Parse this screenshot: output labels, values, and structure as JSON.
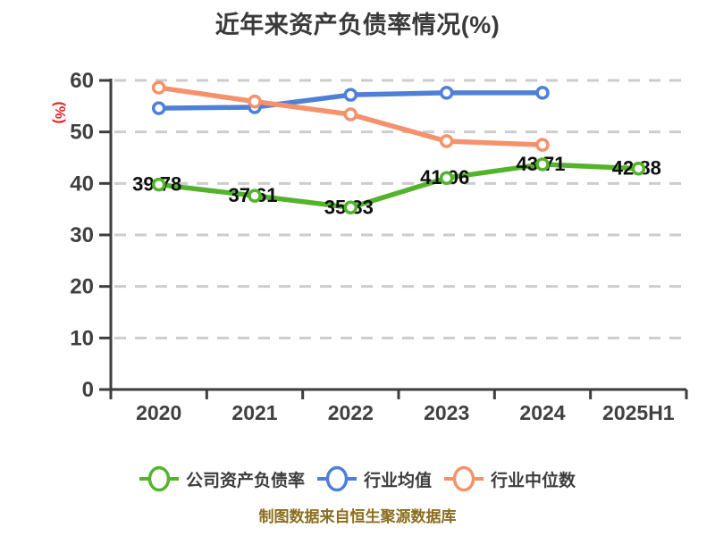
{
  "title": "近年来资产负债率情况(%)",
  "footer": "制图数据来自恒生聚源数据库",
  "colors": {
    "title": "#3a3a3a",
    "footer": "#8a6d1f",
    "y_axis_label": "#e32222",
    "axis": "#3d3d3d",
    "grid": "#cdcdcd",
    "tick_text": "#404040",
    "data_label": "#0f0f0f"
  },
  "chart_data": {
    "type": "line",
    "title": "近年来资产负债率情况(%)",
    "categories": [
      "2020",
      "2021",
      "2022",
      "2023",
      "2024",
      "2025H1"
    ],
    "ylabel": "(%)",
    "ylim": [
      0,
      60
    ],
    "yticks": [
      0,
      10,
      20,
      30,
      40,
      50,
      60
    ],
    "grid": true,
    "legend_position": "bottom",
    "series": [
      {
        "name": "公司资产负债率",
        "color": "#54b32c",
        "values": [
          39.78,
          37.61,
          35.33,
          41.06,
          43.71,
          42.88
        ],
        "show_labels": true
      },
      {
        "name": "行业均值",
        "color": "#4e80d8",
        "values": [
          54.6,
          54.8,
          57.2,
          57.6,
          57.6,
          null
        ],
        "show_labels": false
      },
      {
        "name": "行业中位数",
        "color": "#f5916b",
        "values": [
          58.6,
          55.9,
          53.4,
          48.2,
          47.5,
          null
        ],
        "show_labels": false
      }
    ]
  }
}
